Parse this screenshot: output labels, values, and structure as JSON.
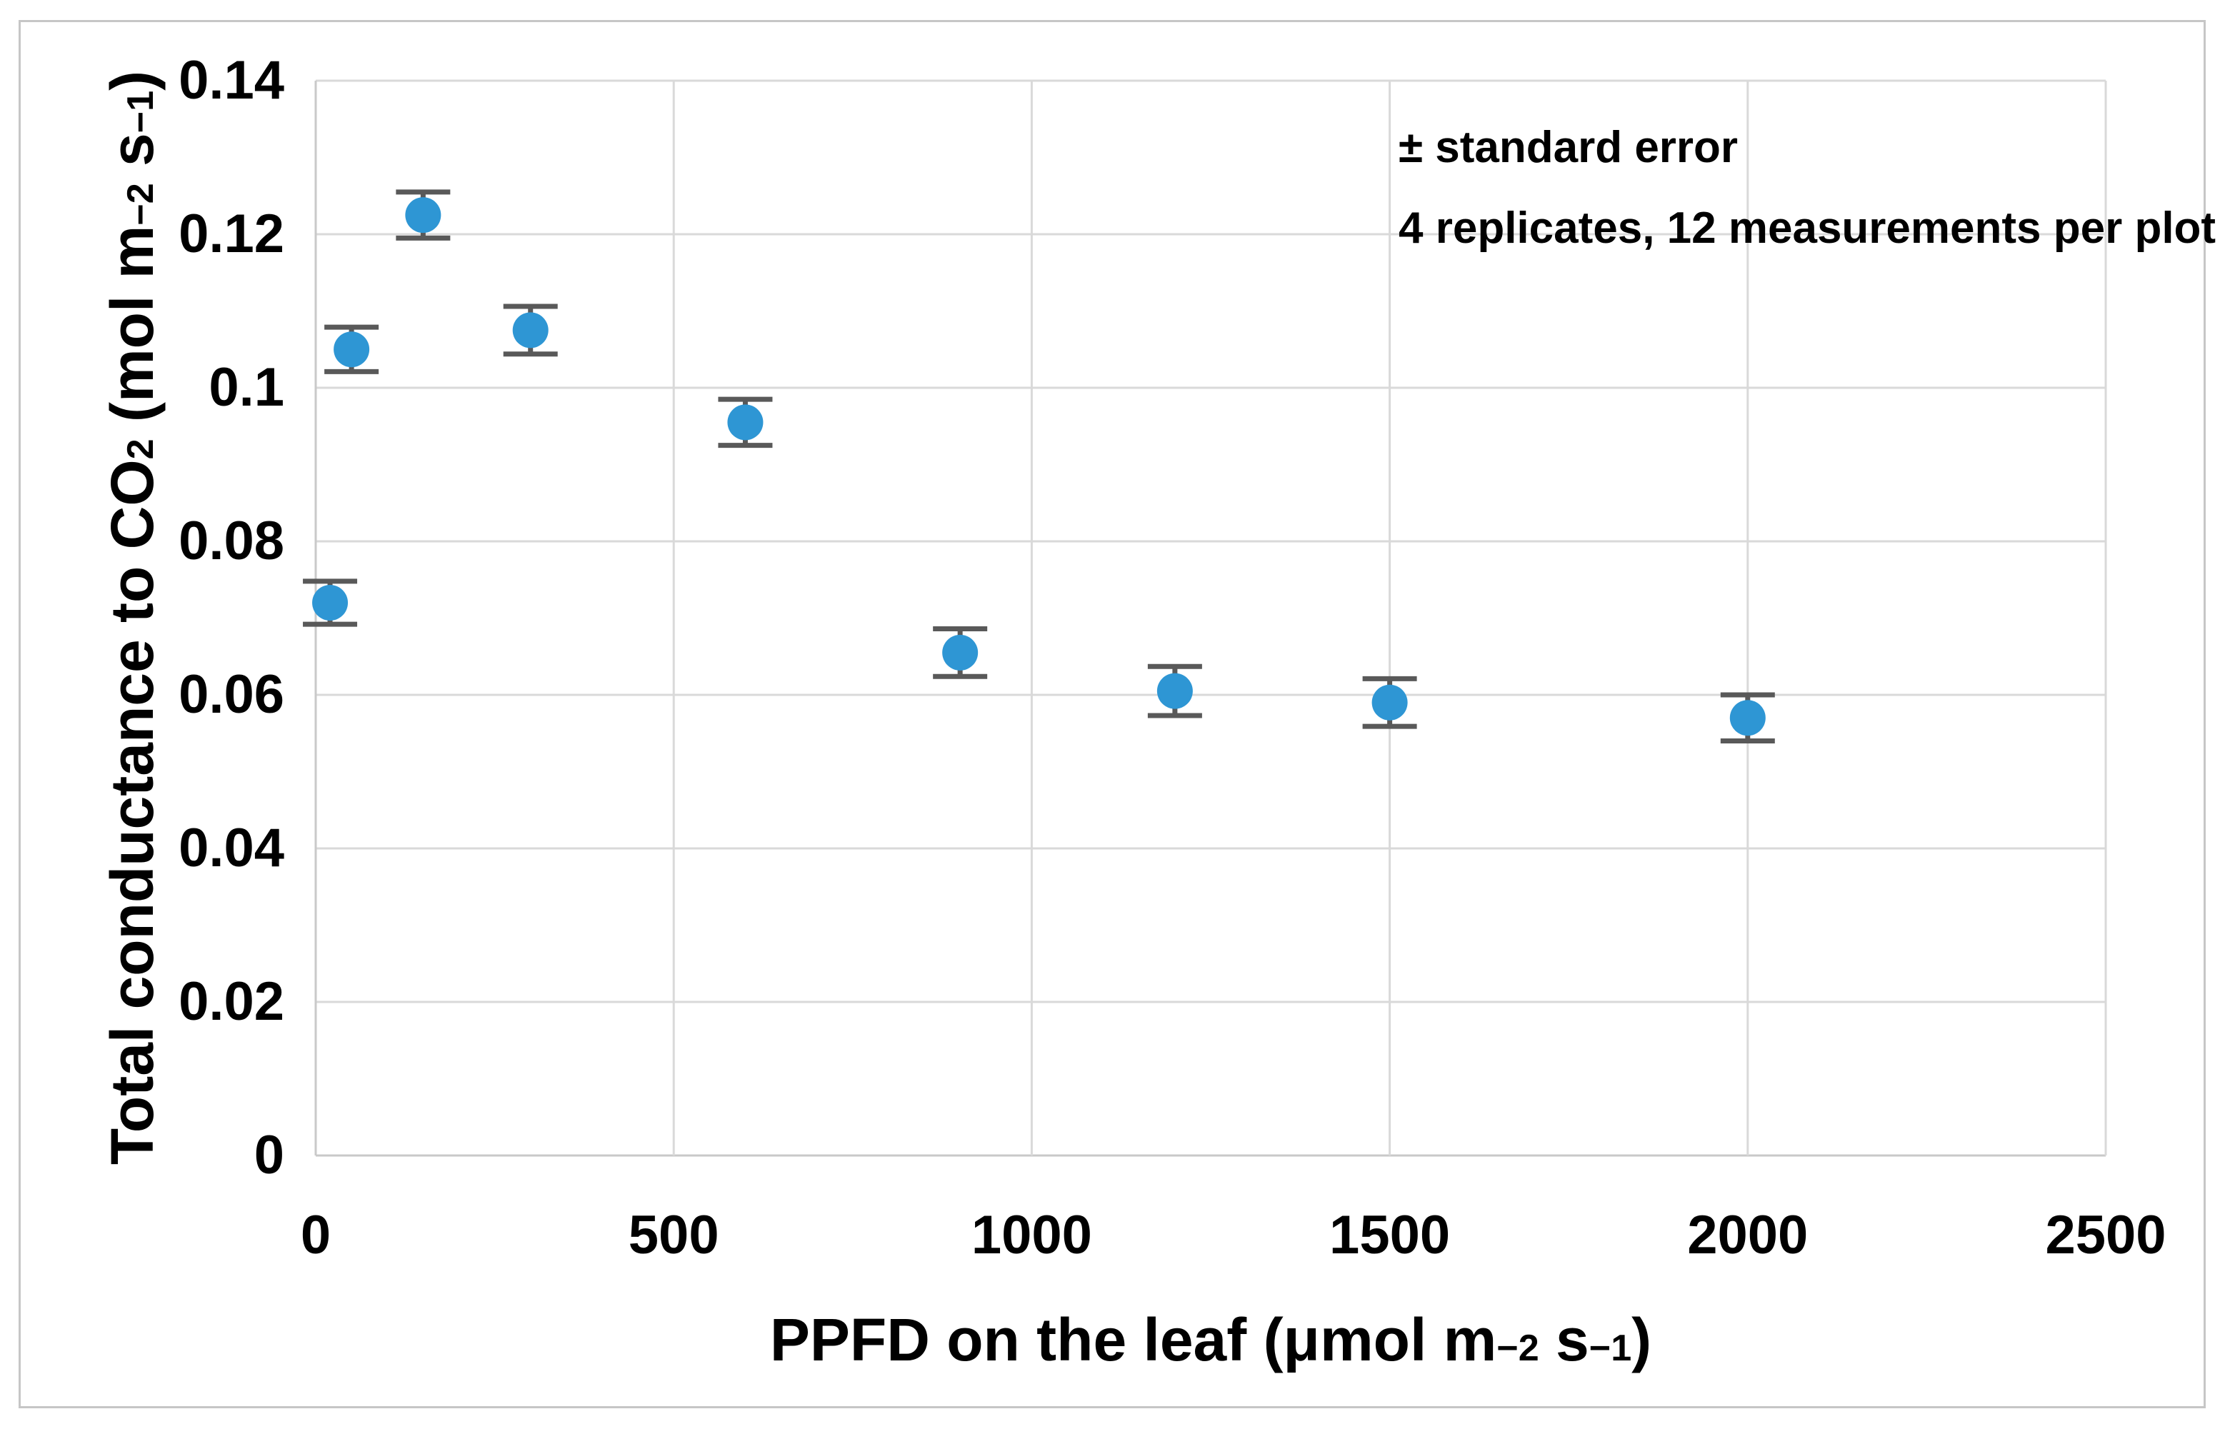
{
  "figure": {
    "background_color": "#ffffff",
    "border_color": "#c6c6c6"
  },
  "chart_data": {
    "type": "scatter",
    "title": "",
    "x": [
      20,
      50,
      150,
      300,
      600,
      900,
      1200,
      1500,
      2000
    ],
    "y": [
      0.072,
      0.105,
      0.1225,
      0.1075,
      0.0955,
      0.0655,
      0.0605,
      0.059,
      0.057
    ],
    "y_err": [
      0.0028,
      0.0029,
      0.003,
      0.0031,
      0.003,
      0.0031,
      0.0032,
      0.0031,
      0.003
    ],
    "marker_color": "#2e96d4",
    "error_bar_color": "#595959",
    "gridline_color": "#d9d9d9",
    "axis_line_color": "#c9c9c9",
    "grid": true,
    "legend": "none",
    "x_axis": {
      "label_plain": "PPFD on the leaf (μmol m−2 s−1)",
      "label_parts": [
        {
          "t": "PPFD on the leaf (μmol m"
        },
        {
          "t": "−2",
          "s": "sup"
        },
        {
          "t": " s",
          "s": null
        },
        {
          "t": "−1",
          "s": "sup"
        },
        {
          "t": ")",
          "s": null
        }
      ],
      "min": 0,
      "max": 2500,
      "tick_step": 500,
      "ticks": [
        "0",
        "500",
        "1000",
        "1500",
        "2000",
        "2500"
      ]
    },
    "y_axis": {
      "label_plain": "Total conductance to CO2 (mol m−2 s−1)",
      "label_parts": [
        {
          "t": "Total conductance to CO"
        },
        {
          "t": "2",
          "s": "sub"
        },
        {
          "t": " (mol m",
          "s": null
        },
        {
          "t": "−2",
          "s": "sup"
        },
        {
          "t": " s",
          "s": null
        },
        {
          "t": "−1",
          "s": "sup"
        },
        {
          "t": ")",
          "s": null
        }
      ],
      "min": 0,
      "max": 0.14,
      "tick_step": 0.02,
      "ticks": [
        "0",
        "0.02",
        "0.04",
        "0.06",
        "0.08",
        "0.1",
        "0.12",
        "0.14"
      ]
    },
    "annotation": {
      "lines": [
        "± standard error",
        "4 replicates, 12 measurements per plot"
      ]
    }
  }
}
